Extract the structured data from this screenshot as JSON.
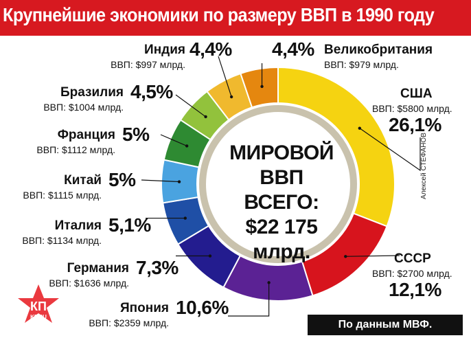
{
  "title": "Крупнейшие экономики по размеру ВВП в 1990 году",
  "center": {
    "line1": "МИРОВОЙ",
    "line2": "ВВП ВСЕГО:",
    "line3": "$22 175",
    "line4": "млрд."
  },
  "author": "Алексей СТЕФАНОВ",
  "source": "По данным МВФ.",
  "logo": {
    "text_top": "КП",
    "text_bottom": "KP.RU"
  },
  "colors": {
    "title_bg": "#d71920",
    "ring_shadow": "#c9c2ad"
  },
  "chart_data": {
    "type": "pie",
    "style": "donut",
    "unit": "млрд. $",
    "total": 22175,
    "slices": [
      {
        "name": "США",
        "gdp_label": "ВВП: $5800 млрд.",
        "value": 5800,
        "percent": 26.1,
        "percent_label": "26,1%",
        "color": "#f5d311"
      },
      {
        "name": "СССР",
        "gdp_label": "ВВП: $2700 млрд.",
        "value": 2700,
        "percent": 12.1,
        "percent_label": "12,1%",
        "color": "#d7141d"
      },
      {
        "name": "Япония",
        "gdp_label": "ВВП: $2359 млрд.",
        "value": 2359,
        "percent": 10.6,
        "percent_label": "10,6%",
        "color": "#5b2294"
      },
      {
        "name": "Германия",
        "gdp_label": "ВВП: $1636 млрд.",
        "value": 1636,
        "percent": 7.3,
        "percent_label": "7,3%",
        "color": "#231c8f"
      },
      {
        "name": "Италия",
        "gdp_label": "ВВП: $1134 млрд.",
        "value": 1134,
        "percent": 5.1,
        "percent_label": "5,1%",
        "color": "#1f4fa6"
      },
      {
        "name": "Китай",
        "gdp_label": "ВВП: $1115 млрд.",
        "value": 1115,
        "percent": 5.0,
        "percent_label": "5%",
        "color": "#4aa3e0"
      },
      {
        "name": "Франция",
        "gdp_label": "ВВП: $1112 млрд.",
        "value": 1112,
        "percent": 5.0,
        "percent_label": "5%",
        "color": "#2e8a32"
      },
      {
        "name": "Бразилия",
        "gdp_label": "ВВП: $1004 млрд.",
        "value": 1004,
        "percent": 4.5,
        "percent_label": "4,5%",
        "color": "#92c23c"
      },
      {
        "name": "Индия",
        "gdp_label": "ВВП: $997 млрд.",
        "value": 997,
        "percent": 4.4,
        "percent_label": "4,4%",
        "color": "#f0b92e"
      },
      {
        "name": "Великобритания",
        "gdp_label": "ВВП: $979 млрд.",
        "value": 979,
        "percent": 4.4,
        "percent_label": "4,4%",
        "color": "#e5870f"
      }
    ]
  }
}
